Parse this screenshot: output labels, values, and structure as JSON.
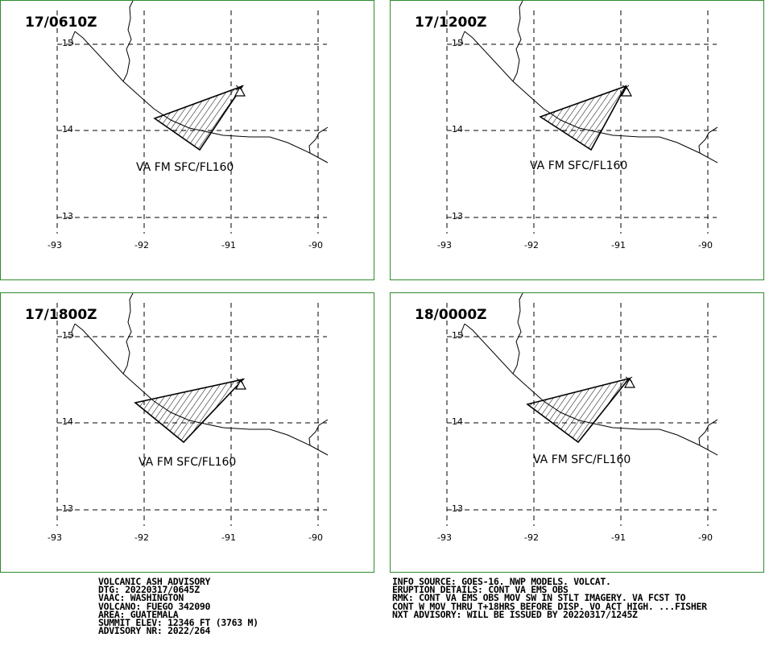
{
  "panels": [
    {
      "time": "17/0610Z",
      "label": "VA FM SFC/FL160"
    },
    {
      "time": "17/1200Z",
      "label": "VA FM SFC/FL160"
    },
    {
      "time": "17/1800Z",
      "label": "VA FM SFC/FL160"
    },
    {
      "time": "18/0000Z",
      "label": "VA FM SFC/FL160"
    }
  ],
  "axis": {
    "lon_ticks": [
      "-93",
      "-92",
      "-91",
      "-90"
    ],
    "lat_ticks": [
      "15",
      "14",
      "13"
    ]
  },
  "advisory_left": [
    "VOLCANIC ASH ADVISORY",
    "DTG: 20220317/0645Z",
    "VAAC: WASHINGTON",
    "VOLCANO: FUEGO 342090",
    "AREA: GUATEMALA",
    "SUMMIT ELEV: 12346 FT (3763 M)",
    "ADVISORY NR: 2022/264"
  ],
  "advisory_right": [
    "INFO SOURCE: GOES-16. NWP MODELS. VOLCAT.",
    "ERUPTION DETAILS: CONT VA EMS OBS",
    "RMK: CONT VA EMS OBS MOV SW IN STLT IMAGERY. VA FCST TO",
    "CONT W MOV THRU T+18HRS BEFORE DISP. VO ACT HIGH. ...FISHER",
    "NXT ADVISORY: WILL BE ISSUED BY 20220317/1245Z"
  ],
  "colors": {
    "frame": "#2e8b2e",
    "lines": "#000000"
  }
}
